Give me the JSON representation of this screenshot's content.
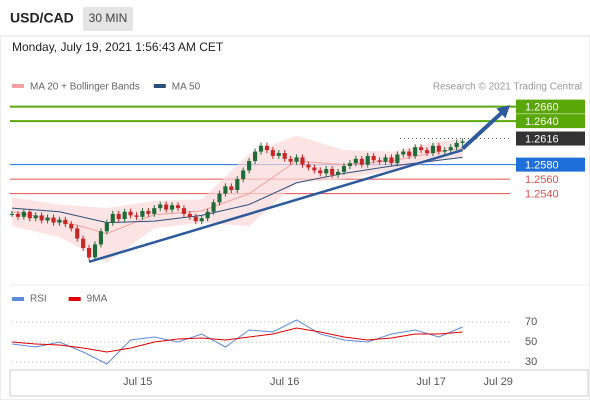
{
  "header": {
    "symbol": "USD/CAD",
    "interval": "30 MIN",
    "timestamp": "Monday, July 19, 2021 1:56:43 AM CET"
  },
  "chart_data": [
    {
      "type": "candlestick",
      "legend": [
        {
          "name": "MA 20 + Bollinger Bands",
          "color": "#f4a0a0"
        },
        {
          "name": "MA 50",
          "color": "#2d4f7c"
        }
      ],
      "source": "Research © 2021 Trading Central",
      "xlim": [
        0,
        84
      ],
      "ylim": [
        1.2414,
        1.2676
      ],
      "xticks": [
        {
          "value": 21.2,
          "label": "Jul 15"
        },
        {
          "value": 46,
          "label": "Jul 16"
        },
        {
          "value": 70.7,
          "label": "Jul 17"
        },
        {
          "value": 82,
          "label": "Jul 29"
        }
      ],
      "levels": [
        {
          "value": 1.266,
          "label": "1.2660"
        },
        {
          "value": 1.264,
          "label": "1.2640"
        },
        {
          "value": 1.2616,
          "label": "1.2616"
        },
        {
          "value": 1.258,
          "label": "1.2580"
        },
        {
          "value": 1.256,
          "label": "1.2560"
        },
        {
          "value": 1.254,
          "label": "1.2540"
        }
      ],
      "level_colors": [
        "#5aa70a",
        "#5aa70a",
        "#333333",
        "#1e6fd9",
        "#e05050",
        "#e05050"
      ],
      "level_boxed": [
        true,
        true,
        true,
        true,
        false,
        false
      ],
      "level_dotted": [
        false,
        false,
        true,
        false,
        false,
        false
      ],
      "up_color": "#1f6b3a",
      "down_color": "#c62828",
      "series": [
        {
          "name": "Close",
          "values": [
            1.2512,
            1.2508,
            1.2515,
            1.2506,
            1.251,
            1.2503,
            1.2507,
            1.25,
            1.2504,
            1.2498,
            1.2492,
            1.2478,
            1.2465,
            1.2452,
            1.247,
            1.2488,
            1.25,
            1.2512,
            1.2505,
            1.2515,
            1.251,
            1.2508,
            1.2516,
            1.2512,
            1.252,
            1.2525,
            1.2518,
            1.2524,
            1.252,
            1.2512,
            1.2508,
            1.2502,
            1.2506,
            1.2515,
            1.2528,
            1.254,
            1.255,
            1.2545,
            1.256,
            1.2572,
            1.2585,
            1.2598,
            1.2606,
            1.26,
            1.2592,
            1.2596,
            1.2588,
            1.2584,
            1.259,
            1.258,
            1.2576,
            1.2572,
            1.2568,
            1.2574,
            1.2566,
            1.257,
            1.2578,
            1.2582,
            1.2588,
            1.258,
            1.2592,
            1.2586,
            1.2584,
            1.259,
            1.2582,
            1.2594,
            1.2598,
            1.2592,
            1.2604,
            1.26,
            1.2596,
            1.2606,
            1.2598,
            1.26,
            1.2604,
            1.261,
            1.2612
          ]
        }
      ],
      "overlay_x": [
        0,
        8,
        16,
        24,
        32,
        40,
        48,
        56,
        64,
        72,
        76
      ],
      "band_upper": [
        1.2535,
        1.2525,
        1.252,
        1.253,
        1.2532,
        1.2595,
        1.262,
        1.26,
        1.2598,
        1.2612,
        1.2615
      ],
      "band_lower": [
        1.2495,
        1.248,
        1.2445,
        1.2492,
        1.25,
        1.2495,
        1.2555,
        1.256,
        1.2572,
        1.2585,
        1.259
      ],
      "ma20": [
        1.2515,
        1.2503,
        1.2485,
        1.2511,
        1.2516,
        1.254,
        1.2585,
        1.258,
        1.2585,
        1.2598,
        1.2602
      ],
      "ma50": [
        1.252,
        1.2515,
        1.25,
        1.2502,
        1.251,
        1.2525,
        1.2555,
        1.2568,
        1.2578,
        1.2586,
        1.259
      ],
      "trendline": {
        "x": [
          13,
          76
        ],
        "values": [
          1.2446,
          1.26
        ]
      },
      "target_arrow": {
        "x": [
          76,
          84
        ],
        "values": [
          1.2602,
          1.2662
        ]
      }
    },
    {
      "type": "line",
      "xlim": [
        0,
        84
      ],
      "ylim": [
        22,
        92
      ],
      "yticks": [
        70,
        50,
        30
      ],
      "x": [
        0,
        4,
        8,
        12,
        16,
        20,
        24,
        28,
        32,
        36,
        40,
        44,
        48,
        52,
        56,
        60,
        64,
        68,
        72,
        76
      ],
      "series": [
        {
          "name": "RSI",
          "color": "#5b8dd9",
          "values": [
            48,
            45,
            50,
            40,
            28,
            52,
            55,
            50,
            58,
            45,
            62,
            60,
            72,
            58,
            52,
            50,
            58,
            62,
            55,
            65
          ]
        },
        {
          "name": "9MA",
          "color": "#e00000",
          "values": [
            50,
            48,
            47,
            44,
            40,
            44,
            50,
            53,
            54,
            52,
            55,
            58,
            64,
            60,
            55,
            52,
            54,
            58,
            58,
            60
          ]
        }
      ]
    }
  ]
}
